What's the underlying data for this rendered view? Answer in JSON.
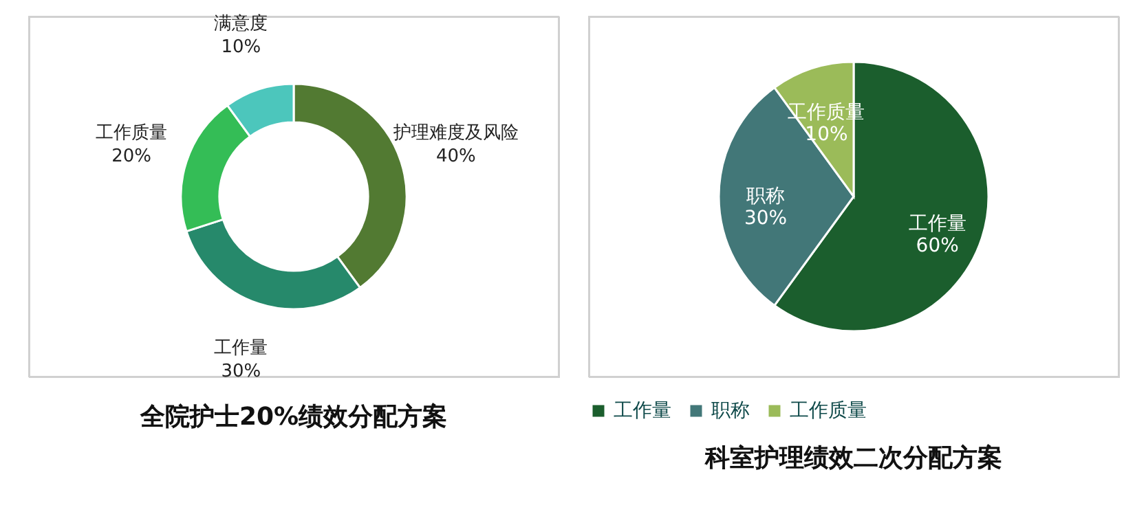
{
  "chart_data": [
    {
      "type": "donut",
      "title": "全院护士20%绩效分配方案",
      "categories": [
        "护理难度及风险",
        "工作量",
        "工作质量",
        "满意度"
      ],
      "values": [
        40,
        30,
        20,
        10
      ],
      "colors": [
        "#527a32",
        "#26896b",
        "#34bd56",
        "#4cc6bc"
      ],
      "value_labels": [
        "40%",
        "30%",
        "20%",
        "10%"
      ],
      "legend": false
    },
    {
      "type": "pie",
      "title": "科室护理绩效二次分配方案",
      "categories": [
        "工作量",
        "职称",
        "工作质量"
      ],
      "values": [
        60,
        30,
        10
      ],
      "colors": [
        "#1b5e2d",
        "#427778",
        "#9bbb59"
      ],
      "value_labels": [
        "60%",
        "30%",
        "10%"
      ],
      "legend": "bottom"
    }
  ]
}
